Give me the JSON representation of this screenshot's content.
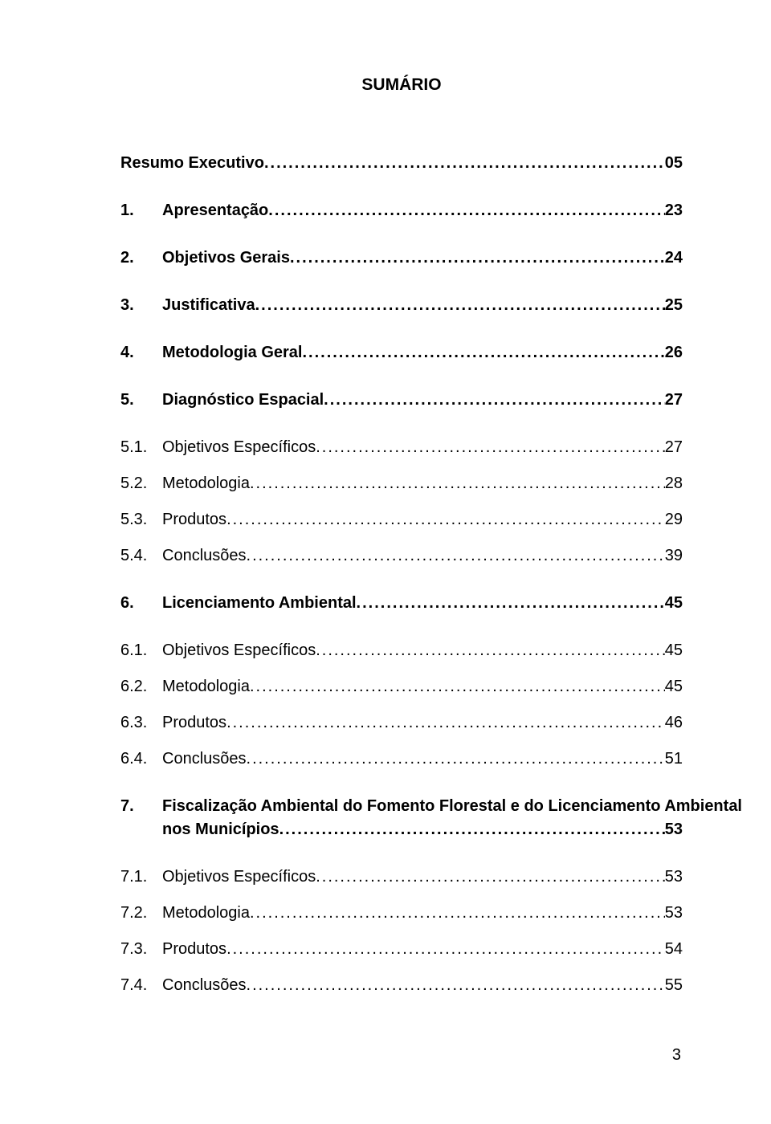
{
  "title": "SUMÁRIO",
  "page_number": "3",
  "leader_char": ".",
  "entries": [
    {
      "kind": "section",
      "num": "",
      "text": "Resumo Executivo",
      "page": "05",
      "gap": true
    },
    {
      "kind": "section",
      "num": "1.",
      "text": "Apresentação",
      "page": "23",
      "gap": true
    },
    {
      "kind": "section",
      "num": "2.",
      "text": "Objetivos Gerais",
      "page": "24",
      "gap": true
    },
    {
      "kind": "section",
      "num": "3.",
      "text": "Justificativa",
      "page": "25",
      "gap": true
    },
    {
      "kind": "section",
      "num": "4.",
      "text": "Metodologia Geral",
      "page": "26",
      "gap": true
    },
    {
      "kind": "section",
      "num": "5.",
      "text": "Diagnóstico Espacial",
      "page": "27",
      "gap": true
    },
    {
      "kind": "subsection",
      "num": "5.1.",
      "text": "Objetivos Específicos",
      "page": "27",
      "gap": false
    },
    {
      "kind": "subsection",
      "num": "5.2.",
      "text": "Metodologia",
      "page": "28",
      "gap": false
    },
    {
      "kind": "subsection",
      "num": "5.3.",
      "text": "Produtos",
      "page": "29",
      "gap": false
    },
    {
      "kind": "subsection",
      "num": "5.4.",
      "text": "Conclusões",
      "page": "39",
      "gap": true
    },
    {
      "kind": "section",
      "num": "6.",
      "text": "Licenciamento Ambiental",
      "page": "45",
      "gap": true
    },
    {
      "kind": "subsection",
      "num": "6.1.",
      "text": "Objetivos Específicos",
      "page": "45",
      "gap": false
    },
    {
      "kind": "subsection",
      "num": "6.2.",
      "text": "Metodologia",
      "page": "45",
      "gap": false
    },
    {
      "kind": "subsection",
      "num": "6.3.",
      "text": "Produtos",
      "page": "46",
      "gap": false
    },
    {
      "kind": "subsection",
      "num": "6.4.",
      "text": "Conclusões",
      "page": "51",
      "gap": true
    },
    {
      "kind": "section",
      "num": "7.",
      "text": "Fiscalização Ambiental do Fomento Florestal e do Licenciamento Ambiental nos Municípios",
      "page": "53",
      "gap": true,
      "wrap": true
    },
    {
      "kind": "subsection",
      "num": "7.1.",
      "text": "Objetivos Específicos",
      "page": "53",
      "gap": false
    },
    {
      "kind": "subsection",
      "num": "7.2.",
      "text": "Metodologia",
      "page": "53",
      "gap": false
    },
    {
      "kind": "subsection",
      "num": "7.3.",
      "text": "Produtos",
      "page": "54",
      "gap": false
    },
    {
      "kind": "subsection",
      "num": "7.4.",
      "text": "Conclusões",
      "page": "55",
      "gap": false
    }
  ]
}
